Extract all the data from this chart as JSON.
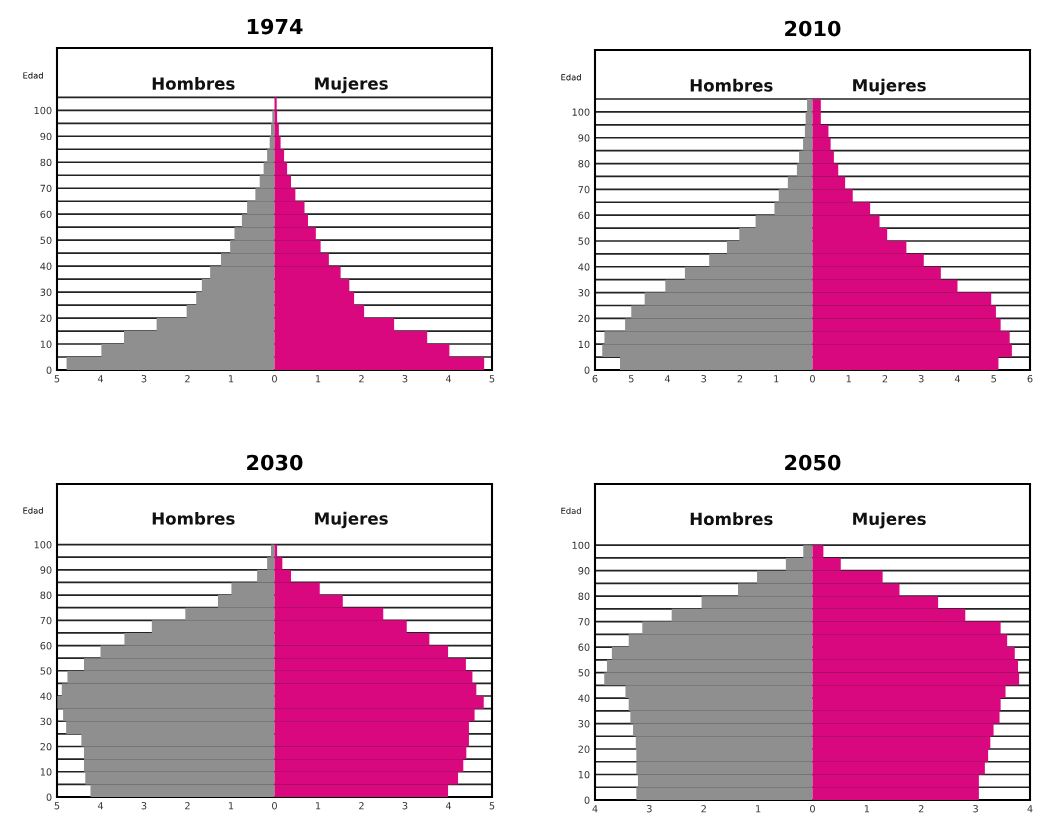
{
  "chart_data": [
    {
      "type": "bar",
      "orientation": "horizontal",
      "stacked": true,
      "title": "1974",
      "ylabel": "Edad",
      "legend": false,
      "grid": "y",
      "x": [
        2.5,
        7.5,
        12.5,
        17.5,
        22.5,
        27.5,
        32.5,
        37.5,
        42.5,
        47.5,
        52.5,
        57.5,
        62.5,
        67.5,
        72.5,
        77.5,
        82.5,
        87.5,
        92.5,
        97.5,
        102.5
      ],
      "series": [
        {
          "name": "Hombres",
          "color": "#8f8f8f",
          "values": [
            -4.78,
            -3.98,
            -3.46,
            -2.71,
            -2.02,
            -1.8,
            -1.67,
            -1.48,
            -1.23,
            -1.02,
            -0.92,
            -0.75,
            -0.63,
            -0.44,
            -0.34,
            -0.25,
            -0.17,
            -0.11,
            -0.08,
            -0.05,
            null
          ]
        },
        {
          "name": "Mujeres",
          "color": "#d9087e",
          "values": [
            4.82,
            4.02,
            3.51,
            2.75,
            2.06,
            1.83,
            1.72,
            1.52,
            1.25,
            1.06,
            0.95,
            0.77,
            0.69,
            0.48,
            0.38,
            0.29,
            0.22,
            0.14,
            0.1,
            0.06,
            0.05
          ]
        }
      ],
      "xlim": [
        -5,
        5
      ],
      "xticks": [
        {
          "value": -5,
          "label": "5"
        },
        {
          "value": -4,
          "label": "4"
        },
        {
          "value": -3,
          "label": "3"
        },
        {
          "value": -2,
          "label": "2"
        },
        {
          "value": -1,
          "label": "1"
        },
        0,
        1,
        2,
        3,
        4,
        5
      ],
      "ylim": [
        0,
        124
      ],
      "yticks": [
        0,
        {
          "value": 5,
          "label": null
        },
        10,
        {
          "value": 15,
          "label": null
        },
        20,
        {
          "value": 25,
          "label": null
        },
        30,
        {
          "value": 35,
          "label": null
        },
        40,
        {
          "value": 45,
          "label": null
        },
        50,
        {
          "value": 55,
          "label": null
        },
        60,
        {
          "value": 65,
          "label": null
        },
        70,
        {
          "value": 75,
          "label": null
        },
        80,
        {
          "value": 85,
          "label": null
        },
        90,
        {
          "value": 95,
          "label": null
        },
        100,
        {
          "value": 105,
          "label": null
        }
      ]
    },
    {
      "type": "bar",
      "orientation": "horizontal",
      "stacked": true,
      "title": "2010",
      "ylabel": "Edad",
      "legend": false,
      "grid": "y",
      "x": [
        2.5,
        7.5,
        12.5,
        17.5,
        22.5,
        27.5,
        32.5,
        37.5,
        42.5,
        47.5,
        52.5,
        57.5,
        62.5,
        67.5,
        72.5,
        77.5,
        82.5,
        87.5,
        92.5,
        97.5,
        102.5
      ],
      "series": [
        {
          "name": "Hombres",
          "color": "#8f8f8f",
          "values": [
            -5.31,
            -5.8,
            -5.74,
            -5.17,
            -5.0,
            -4.63,
            -4.06,
            -3.52,
            -2.85,
            -2.36,
            -2.02,
            -1.57,
            -1.05,
            -0.93,
            -0.68,
            -0.43,
            -0.37,
            -0.26,
            -0.21,
            -0.19,
            -0.15
          ]
        },
        {
          "name": "Mujeres",
          "color": "#d9087e",
          "values": [
            5.13,
            5.5,
            5.44,
            5.19,
            5.06,
            4.93,
            4.0,
            3.54,
            3.07,
            2.59,
            2.06,
            1.85,
            1.59,
            1.11,
            0.9,
            0.71,
            0.59,
            0.5,
            0.44,
            0.23,
            0.23
          ]
        }
      ],
      "xlim": [
        -6,
        6
      ],
      "xticks": [
        {
          "value": -6,
          "label": "6"
        },
        {
          "value": -5,
          "label": "5"
        },
        {
          "value": -4,
          "label": "4"
        },
        {
          "value": -3,
          "label": "3"
        },
        {
          "value": -2,
          "label": "2"
        },
        {
          "value": -1,
          "label": "1"
        },
        0,
        1,
        2,
        3,
        4,
        5,
        6
      ],
      "ylim": [
        0,
        124
      ],
      "yticks": [
        0,
        {
          "value": 5,
          "label": null
        },
        10,
        {
          "value": 15,
          "label": null
        },
        20,
        {
          "value": 25,
          "label": null
        },
        30,
        {
          "value": 35,
          "label": null
        },
        40,
        {
          "value": 45,
          "label": null
        },
        50,
        {
          "value": 55,
          "label": null
        },
        60,
        {
          "value": 65,
          "label": null
        },
        70,
        {
          "value": 75,
          "label": null
        },
        80,
        {
          "value": 85,
          "label": null
        },
        90,
        {
          "value": 95,
          "label": null
        },
        100,
        {
          "value": 105,
          "label": null
        }
      ]
    },
    {
      "type": "bar",
      "orientation": "horizontal",
      "stacked": true,
      "title": "2030",
      "ylabel": "Edad",
      "legend": false,
      "grid": "y",
      "x": [
        2.5,
        7.5,
        12.5,
        17.5,
        22.5,
        27.5,
        32.5,
        37.5,
        42.5,
        47.5,
        52.5,
        57.5,
        62.5,
        67.5,
        72.5,
        77.5,
        82.5,
        87.5,
        92.5,
        97.5
      ],
      "series": [
        {
          "name": "Hombres",
          "color": "#8f8f8f",
          "values": [
            -4.23,
            -4.35,
            -4.38,
            -4.38,
            -4.44,
            -4.79,
            -4.86,
            -4.99,
            -4.89,
            -4.76,
            -4.38,
            -4.0,
            -3.45,
            -2.82,
            -2.05,
            -1.3,
            -0.99,
            -0.4,
            -0.17,
            -0.08
          ]
        },
        {
          "name": "Mujeres",
          "color": "#d9087e",
          "values": [
            3.99,
            4.22,
            4.34,
            4.41,
            4.47,
            4.47,
            4.6,
            4.81,
            4.64,
            4.55,
            4.4,
            3.99,
            3.56,
            3.04,
            2.5,
            1.57,
            1.04,
            0.38,
            0.18,
            0.06
          ]
        }
      ],
      "xlim": [
        -5,
        5
      ],
      "xticks": [
        {
          "value": -5,
          "label": "5"
        },
        {
          "value": -4,
          "label": "4"
        },
        {
          "value": -3,
          "label": "3"
        },
        {
          "value": -2,
          "label": "2"
        },
        {
          "value": -1,
          "label": "1"
        },
        0,
        1,
        2,
        3,
        4,
        5
      ],
      "ylim": [
        0,
        124
      ],
      "yticks": [
        0,
        {
          "value": 5,
          "label": null
        },
        10,
        {
          "value": 15,
          "label": null
        },
        20,
        {
          "value": 25,
          "label": null
        },
        30,
        {
          "value": 35,
          "label": null
        },
        40,
        {
          "value": 45,
          "label": null
        },
        50,
        {
          "value": 55,
          "label": null
        },
        60,
        {
          "value": 65,
          "label": null
        },
        70,
        {
          "value": 75,
          "label": null
        },
        80,
        {
          "value": 85,
          "label": null
        },
        90,
        {
          "value": 95,
          "label": null
        },
        100
      ]
    },
    {
      "type": "bar",
      "orientation": "horizontal",
      "stacked": true,
      "title": "2050",
      "ylabel": "Edad",
      "legend": false,
      "grid": "y",
      "x": [
        2.5,
        7.5,
        12.5,
        17.5,
        22.5,
        27.5,
        32.5,
        37.5,
        42.5,
        47.5,
        52.5,
        57.5,
        62.5,
        67.5,
        72.5,
        77.5,
        82.5,
        87.5,
        92.5,
        97.5
      ],
      "series": [
        {
          "name": "Hombres",
          "color": "#8f8f8f",
          "values": [
            -3.24,
            -3.21,
            -3.24,
            -3.24,
            -3.25,
            -3.3,
            -3.35,
            -3.38,
            -3.44,
            -3.83,
            -3.78,
            -3.69,
            -3.38,
            -3.13,
            -2.59,
            -2.04,
            -1.37,
            -1.02,
            -0.49,
            -0.17
          ]
        },
        {
          "name": "Mujeres",
          "color": "#d9087e",
          "values": [
            3.06,
            3.06,
            3.17,
            3.23,
            3.27,
            3.33,
            3.44,
            3.46,
            3.55,
            3.8,
            3.78,
            3.72,
            3.58,
            3.46,
            2.81,
            2.31,
            1.6,
            1.29,
            0.52,
            0.2
          ]
        }
      ],
      "xlim": [
        -4,
        4
      ],
      "xticks": [
        {
          "value": -4,
          "label": "4"
        },
        {
          "value": -3,
          "label": "3"
        },
        {
          "value": -2,
          "label": "2"
        },
        {
          "value": -1,
          "label": "1"
        },
        0,
        1,
        2,
        3,
        4
      ],
      "ylim": [
        0,
        124
      ],
      "yticks": [
        0,
        {
          "value": 5,
          "label": null
        },
        10,
        {
          "value": 15,
          "label": null
        },
        20,
        {
          "value": 25,
          "label": null
        },
        30,
        {
          "value": 35,
          "label": null
        },
        40,
        {
          "value": 45,
          "label": null
        },
        50,
        {
          "value": 55,
          "label": null
        },
        60,
        {
          "value": 65,
          "label": null
        },
        70,
        {
          "value": 75,
          "label": null
        },
        80,
        {
          "value": 85,
          "label": null
        },
        90,
        {
          "value": 95,
          "label": null
        },
        100
      ]
    }
  ]
}
